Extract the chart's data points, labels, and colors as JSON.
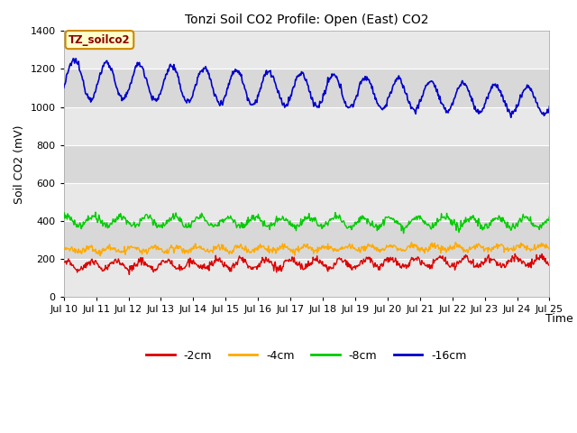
{
  "title": "Tonzi Soil CO2 Profile: Open (East) CO2",
  "xlabel": "Time",
  "ylabel": "Soil CO2 (mV)",
  "ylim": [
    0,
    1400
  ],
  "yticks": [
    0,
    200,
    400,
    600,
    800,
    1000,
    1200,
    1400
  ],
  "xtick_labels": [
    "Jul 10",
    "Jul 11",
    "Jul 12",
    "Jul 13",
    "Jul 14",
    "Jul 15",
    "Jul 16",
    "Jul 17",
    "Jul 18",
    "Jul 19",
    "Jul 20",
    "Jul 21",
    "Jul 22",
    "Jul 23",
    "Jul 24",
    "Jul 25"
  ],
  "legend_label": "TZ_soilco2",
  "legend_text_color": "#8b0000",
  "legend_bg_color": "#ffffcc",
  "legend_border_color": "#cc8800",
  "series_labels": [
    "-2cm",
    "-4cm",
    "-8cm",
    "-16cm"
  ],
  "series_colors": [
    "#dd0000",
    "#ffaa00",
    "#00cc00",
    "#0000cc"
  ],
  "band_colors": [
    "#e8e8e8",
    "#d8d8d8"
  ],
  "plot_bg_color": "#ffffff",
  "grid_line_color": "#ffffff"
}
